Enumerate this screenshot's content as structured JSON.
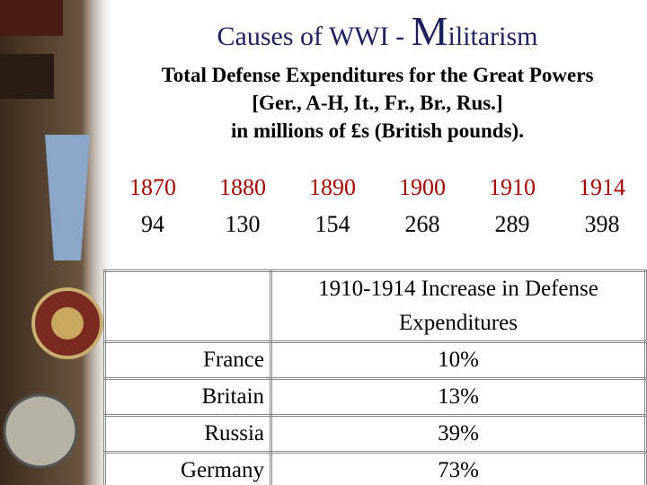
{
  "header": {
    "title_lead": "Causes of WWI - ",
    "title_word": "Militarism",
    "subtitle": [
      "Total Defense Expenditures for the Great Powers",
      "[Ger., A-H, It., Fr., Br., Rus.]",
      "in millions of ₤s (British pounds)."
    ]
  },
  "expenditures": {
    "years": [
      "1870",
      "1880",
      "1890",
      "1900",
      "1910",
      "1914"
    ],
    "amounts": [
      "94",
      "130",
      "154",
      "268",
      "289",
      "398"
    ]
  },
  "increase_table": {
    "header": "1910-1914 Increase in Defense Expenditures",
    "rows": [
      [
        "France",
        "10%"
      ],
      [
        "Britain",
        "13%"
      ],
      [
        "Russia",
        "39%"
      ],
      [
        "Germany",
        "73%"
      ]
    ]
  }
}
